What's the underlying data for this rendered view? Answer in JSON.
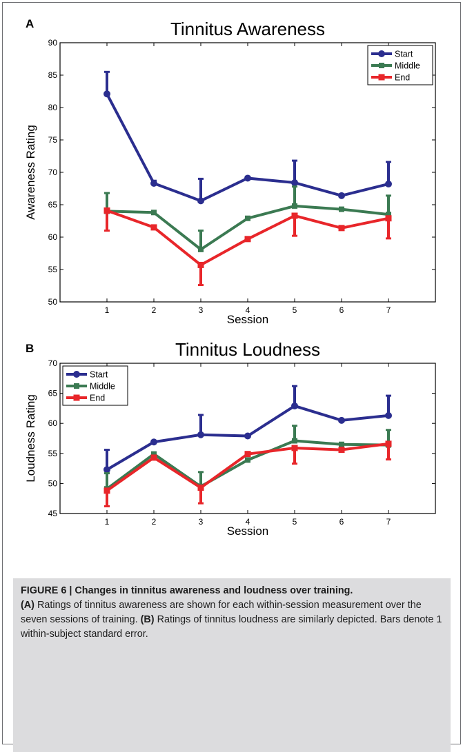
{
  "panels": [
    {
      "letter": "A",
      "title": "Tinnitus Awareness",
      "xlabel": "Session",
      "ylabel": "Awareness Rating"
    },
    {
      "letter": "B",
      "title": "Tinnitus Loudness",
      "xlabel": "Session",
      "ylabel": "Loudness Rating"
    }
  ],
  "caption": {
    "title": "FIGURE 6 | Changes in tinnitus awareness and loudness over training.",
    "label_a": "(A)",
    "text_a": " Ratings of tinnitus awareness are shown for each within-session measurement over the seven sessions of training. ",
    "label_b": "(B)",
    "text_b": " Ratings of tinnitus loudness are similarly depicted. Bars denote 1 within-subject standard error."
  },
  "chart_data": [
    {
      "type": "line",
      "title": "Tinnitus Awareness",
      "xlabel": "Session",
      "ylabel": "Awareness Rating",
      "x": [
        1,
        2,
        3,
        4,
        5,
        6,
        7
      ],
      "xlim": [
        0,
        8
      ],
      "ylim": [
        50,
        90
      ],
      "yticks": [
        50,
        55,
        60,
        65,
        70,
        75,
        80,
        85,
        90
      ],
      "grid": false,
      "legend_position": "top-right",
      "error_bars": "1 within-subject standard error",
      "series": [
        {
          "name": "Start",
          "color": "#2b2e8f",
          "marker": "circle",
          "values": [
            82.1,
            68.3,
            65.6,
            69.1,
            68.4,
            66.4,
            68.2
          ],
          "error_dir": "up",
          "errors": [
            3.4,
            0.4,
            3.4,
            0.2,
            3.4,
            0.2,
            3.4
          ]
        },
        {
          "name": "Middle",
          "color": "#3b7a52",
          "marker": "plus",
          "values": [
            64.0,
            63.8,
            58.1,
            62.9,
            64.8,
            64.3,
            63.5
          ],
          "error_dir": "up",
          "errors": [
            2.8,
            0.2,
            2.9,
            0.2,
            3.0,
            0.2,
            2.9
          ]
        },
        {
          "name": "End",
          "color": "#e8262a",
          "marker": "square",
          "values": [
            64.1,
            61.5,
            55.7,
            59.7,
            63.3,
            61.4,
            62.9
          ],
          "error_dir": "down",
          "errors": [
            3.1,
            0.2,
            3.1,
            0.2,
            3.1,
            0.2,
            3.1
          ]
        }
      ]
    },
    {
      "type": "line",
      "title": "Tinnitus Loudness",
      "xlabel": "Session",
      "ylabel": "Loudness Rating",
      "x": [
        1,
        2,
        3,
        4,
        5,
        6,
        7
      ],
      "xlim": [
        0,
        8
      ],
      "ylim": [
        45,
        70
      ],
      "yticks": [
        45,
        50,
        55,
        60,
        65,
        70
      ],
      "grid": false,
      "legend_position": "top-left",
      "error_bars": "1 within-subject standard error",
      "series": [
        {
          "name": "Start",
          "color": "#2b2e8f",
          "marker": "circle",
          "values": [
            52.3,
            56.9,
            58.1,
            57.9,
            62.9,
            60.5,
            61.3
          ],
          "error_dir": "up",
          "errors": [
            3.3,
            0.2,
            3.3,
            0.2,
            3.3,
            0.2,
            3.3
          ]
        },
        {
          "name": "Middle",
          "color": "#3b7a52",
          "marker": "plus",
          "values": [
            49.1,
            54.9,
            49.5,
            53.9,
            57.1,
            56.5,
            56.4
          ],
          "error_dir": "up",
          "errors": [
            2.6,
            0.2,
            2.4,
            0.2,
            2.5,
            0.2,
            2.5
          ]
        },
        {
          "name": "End",
          "color": "#e8262a",
          "marker": "square",
          "values": [
            48.8,
            54.3,
            49.3,
            54.9,
            55.9,
            55.6,
            56.6
          ],
          "error_dir": "down",
          "errors": [
            2.6,
            0.2,
            2.6,
            0.2,
            2.6,
            0.2,
            2.6
          ]
        }
      ]
    }
  ]
}
